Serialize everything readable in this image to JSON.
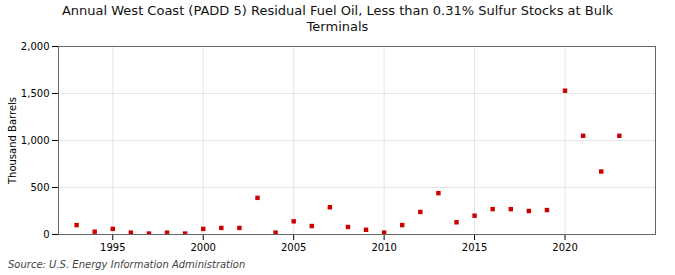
{
  "chart_data": {
    "type": "scatter",
    "title": "Annual West Coast (PADD 5) Residual Fuel Oil, Less than 0.31% Sulfur Stocks at Bulk\nTerminals",
    "ylabel": "Thousand Barrels",
    "annotations": [
      "Source: U.S. Energy Information Administration"
    ],
    "x": [
      1993,
      1994,
      1995,
      1996,
      1997,
      1998,
      1999,
      2000,
      2001,
      2002,
      2003,
      2004,
      2005,
      2006,
      2007,
      2008,
      2009,
      2010,
      2011,
      2012,
      2013,
      2014,
      2015,
      2016,
      2017,
      2018,
      2019,
      2020,
      2021,
      2022,
      2023
    ],
    "values": [
      100,
      30,
      60,
      20,
      10,
      20,
      10,
      60,
      70,
      70,
      390,
      20,
      140,
      90,
      290,
      80,
      50,
      20,
      100,
      240,
      440,
      130,
      200,
      270,
      270,
      250,
      260,
      1530,
      1050,
      670,
      1050
    ],
    "color": "#cc0000",
    "marker": "square",
    "xlim": [
      1992,
      2025
    ],
    "ylim": [
      0,
      2000
    ],
    "xticks": [
      1995,
      2000,
      2005,
      2010,
      2015,
      2020
    ],
    "yticks": [
      0,
      500,
      {
        "value": 1000,
        "label": "1,000"
      },
      {
        "value": 1500,
        "label": "1,500"
      },
      {
        "value": 2000,
        "label": "2,000"
      }
    ],
    "grid": true
  }
}
